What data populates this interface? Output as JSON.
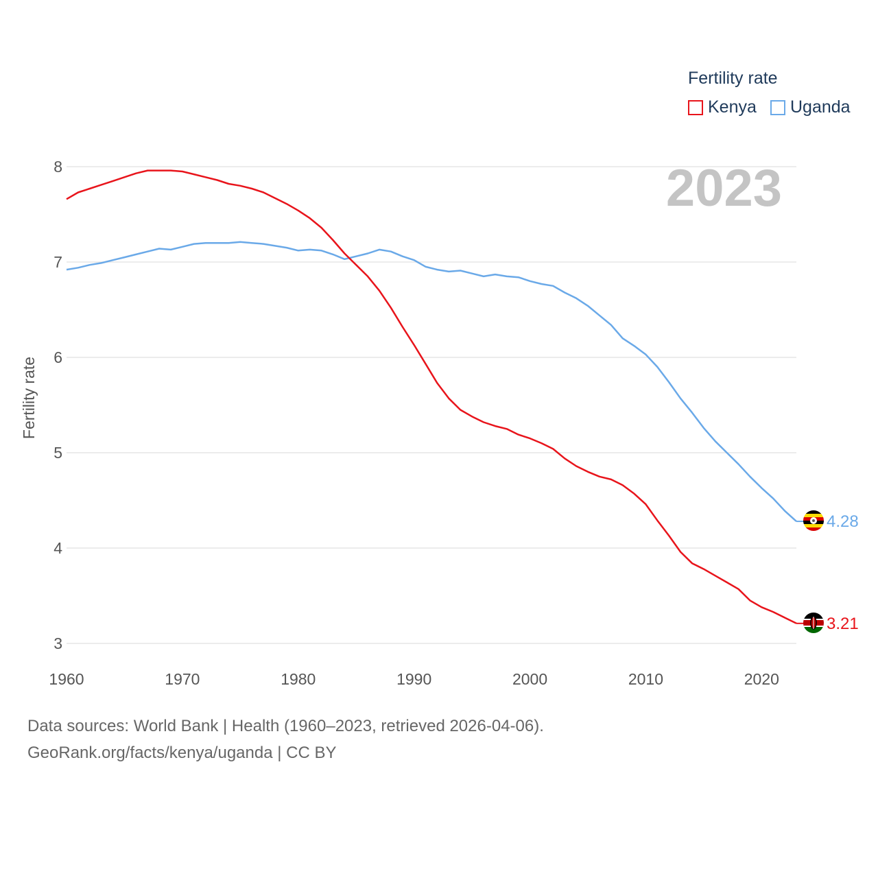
{
  "legend": {
    "title": "Fertility rate",
    "items": [
      {
        "name": "Kenya",
        "color": "#e8141b"
      },
      {
        "name": "Uganda",
        "color": "#6aa9e8"
      }
    ]
  },
  "year_label": "2023",
  "source": {
    "line1": "Data sources: World Bank | Health (1960–2023, retrieved 2026-04-06).",
    "line2": "GeoRank.org/facts/kenya/uganda | CC BY"
  },
  "chart_data": {
    "type": "line",
    "title": "Fertility rate",
    "xlabel": "",
    "ylabel": "Fertility rate",
    "xlim": [
      1960,
      2023
    ],
    "ylim": [
      3,
      8
    ],
    "xticks": [
      "1960",
      "1970",
      "1980",
      "1990",
      "2000",
      "2010",
      "2020"
    ],
    "yticks": [
      "3",
      "4",
      "5",
      "6",
      "7",
      "8"
    ],
    "grid": true,
    "legend_position": "top-right",
    "x": [
      1960,
      1961,
      1962,
      1963,
      1964,
      1965,
      1966,
      1967,
      1968,
      1969,
      1970,
      1971,
      1972,
      1973,
      1974,
      1975,
      1976,
      1977,
      1978,
      1979,
      1980,
      1981,
      1982,
      1983,
      1984,
      1985,
      1986,
      1987,
      1988,
      1989,
      1990,
      1991,
      1992,
      1993,
      1994,
      1995,
      1996,
      1997,
      1998,
      1999,
      2000,
      2001,
      2002,
      2003,
      2004,
      2005,
      2006,
      2007,
      2008,
      2009,
      2010,
      2011,
      2012,
      2013,
      2014,
      2015,
      2016,
      2017,
      2018,
      2019,
      2020,
      2021,
      2022,
      2023
    ],
    "series": [
      {
        "name": "Kenya",
        "color": "#e8141b",
        "end_label": "3.21",
        "values": [
          7.66,
          7.73,
          7.77,
          7.81,
          7.85,
          7.89,
          7.93,
          7.96,
          7.96,
          7.96,
          7.95,
          7.92,
          7.89,
          7.86,
          7.82,
          7.8,
          7.77,
          7.73,
          7.67,
          7.61,
          7.54,
          7.46,
          7.36,
          7.23,
          7.09,
          6.97,
          6.85,
          6.7,
          6.52,
          6.32,
          6.13,
          5.93,
          5.73,
          5.57,
          5.45,
          5.38,
          5.32,
          5.28,
          5.25,
          5.19,
          5.15,
          5.1,
          5.04,
          4.94,
          4.86,
          4.8,
          4.75,
          4.72,
          4.66,
          4.57,
          4.46,
          4.29,
          4.13,
          3.96,
          3.84,
          3.78,
          3.71,
          3.64,
          3.57,
          3.45,
          3.38,
          3.33,
          3.27,
          3.21
        ]
      },
      {
        "name": "Uganda",
        "color": "#6aa9e8",
        "end_label": "4.28",
        "values": [
          6.92,
          6.94,
          6.97,
          6.99,
          7.02,
          7.05,
          7.08,
          7.11,
          7.14,
          7.13,
          7.16,
          7.19,
          7.2,
          7.2,
          7.2,
          7.21,
          7.2,
          7.19,
          7.17,
          7.15,
          7.12,
          7.13,
          7.12,
          7.08,
          7.03,
          7.06,
          7.09,
          7.13,
          7.11,
          7.06,
          7.02,
          6.95,
          6.92,
          6.9,
          6.91,
          6.88,
          6.85,
          6.87,
          6.85,
          6.84,
          6.8,
          6.77,
          6.75,
          6.68,
          6.62,
          6.54,
          6.44,
          6.34,
          6.2,
          6.12,
          6.03,
          5.9,
          5.74,
          5.57,
          5.42,
          5.26,
          5.12,
          5.0,
          4.88,
          4.75,
          4.63,
          4.52,
          4.39,
          4.28
        ]
      }
    ]
  }
}
